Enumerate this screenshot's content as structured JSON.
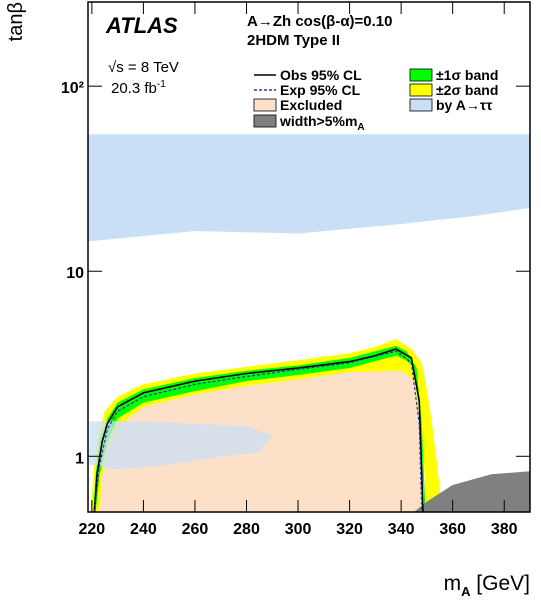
{
  "chart_data": {
    "type": "exclusion",
    "experiment": "ATLAS",
    "title": "A→Zh cos(β-α)=0.10",
    "subtitle": "2HDM Type II",
    "energy": "√s = 8 TeV",
    "lumi": "20.3 fb",
    "lumi_sup": "-1",
    "x_label": "m",
    "x_label_sub": "A",
    "x_label_unit": " [GeV]",
    "y_label": "tanβ",
    "y_log": true,
    "xlim": [
      218.5,
      390
    ],
    "ylim": [
      0.5,
      285
    ],
    "xticks": [
      220,
      240,
      260,
      280,
      300,
      320,
      340,
      360,
      380
    ],
    "yticks": [
      1,
      10,
      {
        "value": 100,
        "label": "10²"
      }
    ],
    "series": [
      {
        "name": "by A→ττ",
        "kind": "region",
        "color": "#c8dff6",
        "x": [
          218.5,
          390,
          390,
          370,
          340,
          300,
          260,
          230,
          218.5
        ],
        "values": [
          55,
          55,
          22,
          20,
          18,
          16,
          16.5,
          15,
          14.5
        ]
      },
      {
        "name": "Excluded",
        "kind": "region",
        "color": "#fde0c8",
        "x": [
          221,
          222,
          224,
          226,
          230,
          240,
          260,
          280,
          300,
          320,
          330,
          338,
          344,
          347,
          348,
          348.5
        ],
        "values": [
          0.5,
          0.8,
          1.2,
          1.5,
          1.85,
          2.2,
          2.55,
          2.8,
          3.0,
          3.25,
          3.5,
          3.8,
          3.4,
          2.0,
          0.8,
          0.5
        ]
      },
      {
        "name": "±2σ band",
        "kind": "band",
        "color": "#ffff00",
        "x": [
          219.5,
          221,
          222.5,
          225,
          230,
          240,
          260,
          280,
          300,
          320,
          330,
          338,
          344,
          348,
          350,
          352,
          354,
          356,
          350,
          348,
          345,
          340,
          320,
          300,
          280,
          260,
          240,
          230,
          226,
          224,
          223
        ],
        "values": [
          0.5,
          0.9,
          1.3,
          1.75,
          2.1,
          2.45,
          2.8,
          3.05,
          3.3,
          3.6,
          3.9,
          4.3,
          3.8,
          3.2,
          2.3,
          1.5,
          0.9,
          0.5,
          0.5,
          1.4,
          2.6,
          2.9,
          2.85,
          2.6,
          2.4,
          2.15,
          1.85,
          1.45,
          1.1,
          0.8,
          0.5
        ]
      },
      {
        "name": "±1σ band",
        "kind": "band",
        "color": "#00ff00",
        "x": [
          220.5,
          221.5,
          223,
          226,
          230,
          240,
          260,
          280,
          300,
          320,
          338,
          342,
          346,
          348,
          349.5,
          349,
          347.5,
          345,
          342,
          338,
          320,
          300,
          280,
          260,
          240,
          230,
          226,
          223,
          221.5
        ],
        "values": [
          0.5,
          0.8,
          1.2,
          1.6,
          1.95,
          2.3,
          2.65,
          2.9,
          3.1,
          3.4,
          3.95,
          3.7,
          3.0,
          1.5,
          0.5,
          0.5,
          1.6,
          3.0,
          3.3,
          3.5,
          3.0,
          2.75,
          2.55,
          2.25,
          1.95,
          1.6,
          1.2,
          0.8,
          0.5
        ]
      },
      {
        "name": "width>5%m",
        "name_sub": "A",
        "kind": "region",
        "color": "#808080",
        "x": [
          345,
          350,
          360,
          375,
          390,
          390
        ],
        "values": [
          0.5,
          0.57,
          0.7,
          0.8,
          0.83,
          0.5
        ]
      },
      {
        "kind": "overlay",
        "color": "#c8dff6",
        "x": [
          219,
          230,
          260,
          280,
          290,
          285,
          270,
          250,
          230,
          219
        ],
        "values": [
          1.55,
          1.55,
          1.5,
          1.45,
          1.3,
          1.05,
          1.0,
          0.9,
          0.85,
          0.9
        ]
      },
      {
        "name": "Obs 95% CL",
        "kind": "line",
        "color": "#000000",
        "x": [
          221,
          222,
          224,
          226,
          230,
          240,
          260,
          280,
          300,
          320,
          330,
          338,
          344,
          347,
          348,
          348.5
        ],
        "values": [
          0.5,
          0.8,
          1.2,
          1.5,
          1.85,
          2.2,
          2.55,
          2.8,
          3.0,
          3.25,
          3.5,
          3.8,
          3.4,
          2.0,
          0.8,
          0.5
        ]
      },
      {
        "name": "Exp 95% CL",
        "kind": "dashed",
        "color": "#3333aa",
        "x": [
          221,
          223,
          226,
          230,
          240,
          260,
          280,
          300,
          320,
          338,
          344,
          347,
          348
        ],
        "values": [
          0.5,
          0.9,
          1.4,
          1.75,
          2.1,
          2.45,
          2.7,
          2.95,
          3.2,
          3.7,
          3.2,
          1.5,
          0.5
        ]
      }
    ]
  }
}
